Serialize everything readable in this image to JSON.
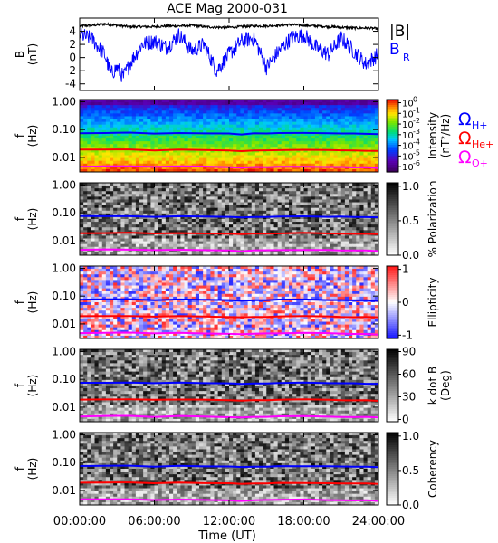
{
  "figure": {
    "title": "ACE Mag 2000-031",
    "xlabel": "Time (UT)",
    "xticks": [
      "00:00:00",
      "06:00:00",
      "12:00:00",
      "18:00:00",
      "24:00:00"
    ],
    "x_range_hours": [
      0,
      24
    ]
  },
  "chart_data": [
    {
      "type": "line",
      "panel": "B",
      "ylabel_lines": [
        "B",
        "(nT)"
      ],
      "ylim": [
        -5,
        6
      ],
      "yticks": [
        "4",
        "2",
        "0",
        "-2",
        "-4"
      ],
      "ytick_values": [
        4,
        2,
        0,
        -2,
        -4
      ],
      "legend": [
        {
          "label": "|B|",
          "color": "#000000"
        },
        {
          "label": "B",
          "sub": "R",
          "color": "#0000ff"
        }
      ],
      "x_hours": [
        0,
        1,
        2,
        2.5,
        3,
        3.5,
        4,
        5,
        6,
        7,
        8,
        9,
        10,
        11,
        12,
        13,
        14,
        15,
        16,
        17,
        18,
        19,
        20,
        21,
        22,
        23,
        24
      ],
      "series": [
        {
          "name": "|B|",
          "color": "#000000",
          "values": [
            4.8,
            4.9,
            5.1,
            5.0,
            4.9,
            4.8,
            4.7,
            4.7,
            4.7,
            4.8,
            4.8,
            4.9,
            4.7,
            4.6,
            4.6,
            4.7,
            4.8,
            4.8,
            4.9,
            5.0,
            4.9,
            4.8,
            4.7,
            4.6,
            4.5,
            4.5,
            4.4
          ]
        },
        {
          "name": "B_R",
          "color": "#0000ff",
          "values": [
            3.5,
            2.8,
            0.5,
            -2.5,
            -1.5,
            -3.0,
            -1.0,
            2.0,
            2.5,
            1.5,
            3.5,
            1.0,
            2.0,
            -2.0,
            0.5,
            2.5,
            3.0,
            -1.5,
            1.0,
            3.0,
            3.5,
            1.5,
            0.5,
            3.0,
            1.0,
            -1.0,
            0.5
          ]
        }
      ]
    },
    {
      "type": "heatmap",
      "panel": "intensity",
      "ylabel_lines": [
        "f",
        "(Hz)"
      ],
      "yscale": "log",
      "ylim": [
        0.003,
        1.2
      ],
      "yticks": [
        "1.00",
        "0.10",
        "0.01"
      ],
      "ytick_values": [
        1,
        0.1,
        0.01
      ],
      "colorbar": {
        "label_lines": [
          "Intensity",
          "(nT²/Hz)"
        ],
        "ticks": [
          {
            "base": "10",
            "exp": "0",
            "value": 0
          },
          {
            "base": "10",
            "exp": "-1",
            "value": -1
          },
          {
            "base": "10",
            "exp": "-2",
            "value": -2
          },
          {
            "base": "10",
            "exp": "-3",
            "value": -3
          },
          {
            "base": "10",
            "exp": "-4",
            "value": -4
          },
          {
            "base": "10",
            "exp": "-5",
            "value": -5
          },
          {
            "base": "10",
            "exp": "-6",
            "value": -6
          }
        ],
        "range": [
          -6.5,
          0.3
        ],
        "palette": "rainbow"
      },
      "cyclotron_legend": [
        {
          "symbol": "Ω",
          "sub": "H+",
          "color": "#0000ff"
        },
        {
          "symbol": "Ω",
          "sub": "He+",
          "color": "#ff0000"
        },
        {
          "symbol": "Ω",
          "sub": "O+",
          "color": "#ff00ff"
        }
      ],
      "pattern": "power_law"
    },
    {
      "type": "heatmap",
      "panel": "polarization",
      "ylabel_lines": [
        "f",
        "(Hz)"
      ],
      "yscale": "log",
      "ylim": [
        0.003,
        1.2
      ],
      "yticks": [
        "1.00",
        "0.10",
        "0.01"
      ],
      "ytick_values": [
        1,
        0.1,
        0.01
      ],
      "colorbar": {
        "label_lines": [
          "% Polarization"
        ],
        "ticks": [
          {
            "text": "1.0",
            "value": 1.0
          },
          {
            "text": "0.5",
            "value": 0.5
          },
          {
            "text": "0.0",
            "value": 0.0
          }
        ],
        "range": [
          0,
          1.05
        ],
        "palette": "gray"
      },
      "pattern": "noise"
    },
    {
      "type": "heatmap",
      "panel": "ellipticity",
      "ylabel_lines": [
        "f",
        "(Hz)"
      ],
      "yscale": "log",
      "ylim": [
        0.003,
        1.2
      ],
      "yticks": [
        "1.00",
        "0.10",
        "0.01"
      ],
      "ytick_values": [
        1,
        0.1,
        0.01
      ],
      "colorbar": {
        "label_lines": [
          "Ellipticity"
        ],
        "ticks": [
          {
            "text": "1",
            "value": 1
          },
          {
            "text": "0",
            "value": 0
          },
          {
            "text": "-1",
            "value": -1
          }
        ],
        "range": [
          -1.1,
          1.1
        ],
        "palette": "bwr"
      },
      "pattern": "noise"
    },
    {
      "type": "heatmap",
      "panel": "kdotb",
      "ylabel_lines": [
        "f",
        "(Hz)"
      ],
      "yscale": "log",
      "ylim": [
        0.003,
        1.2
      ],
      "yticks": [
        "1.00",
        "0.10",
        "0.01"
      ],
      "ytick_values": [
        1,
        0.1,
        0.01
      ],
      "colorbar": {
        "label_lines": [
          "k dot B",
          "(Deg)"
        ],
        "ticks": [
          {
            "text": "90",
            "value": 90
          },
          {
            "text": "60",
            "value": 60
          },
          {
            "text": "30",
            "value": 30
          },
          {
            "text": "0",
            "value": 0
          }
        ],
        "range": [
          -3,
          93
        ],
        "palette": "gray"
      },
      "pattern": "noise"
    },
    {
      "type": "heatmap",
      "panel": "coherency",
      "ylabel_lines": [
        "f",
        "(Hz)"
      ],
      "yscale": "log",
      "ylim": [
        0.003,
        1.2
      ],
      "yticks": [
        "1.00",
        "0.10",
        "0.01"
      ],
      "ytick_values": [
        1,
        0.1,
        0.01
      ],
      "colorbar": {
        "label_lines": [
          "Coherency"
        ],
        "ticks": [
          {
            "text": "1.0",
            "value": 1.0
          },
          {
            "text": "0.5",
            "value": 0.5
          },
          {
            "text": "0.0",
            "value": 0.0
          }
        ],
        "range": [
          0,
          1.05
        ],
        "palette": "gray"
      },
      "pattern": "noise"
    }
  ],
  "cyclotron_lines": {
    "x_hours": [
      0,
      2,
      4,
      6,
      8,
      10,
      12,
      13,
      14,
      15,
      16,
      18,
      20,
      21,
      22,
      23,
      24
    ],
    "H+": {
      "color": "#0000ff",
      "values_hz": [
        0.075,
        0.076,
        0.077,
        0.072,
        0.076,
        0.073,
        0.071,
        0.068,
        0.072,
        0.072,
        0.074,
        0.075,
        0.073,
        0.072,
        0.071,
        0.07,
        0.068
      ]
    },
    "He+": {
      "color": "#ff0000",
      "values_hz": [
        0.0188,
        0.019,
        0.0192,
        0.018,
        0.019,
        0.0183,
        0.0178,
        0.017,
        0.018,
        0.018,
        0.0185,
        0.0188,
        0.0183,
        0.018,
        0.0178,
        0.0175,
        0.017
      ]
    },
    "O+": {
      "color": "#ff00ff",
      "values_hz": [
        0.0047,
        0.0048,
        0.0048,
        0.0045,
        0.0048,
        0.0046,
        0.0044,
        0.0042,
        0.0045,
        0.0045,
        0.0046,
        0.0047,
        0.0046,
        0.0045,
        0.0044,
        0.0044,
        0.0042
      ]
    }
  }
}
